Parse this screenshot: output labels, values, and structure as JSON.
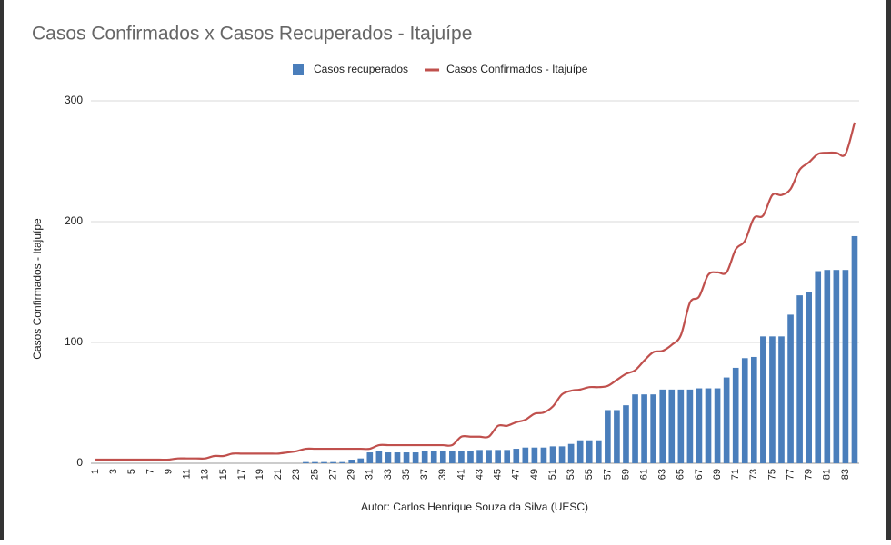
{
  "chart_data": {
    "type": "bar_line",
    "title": "Casos Confirmados x Casos Recuperados - Itajuípe",
    "y_label": "Casos Confirmados - Itajuípe",
    "x_label": "Autor: Carlos Henrique Souza da Silva (UESC)",
    "legend": "top",
    "grid": true,
    "ylim": [
      0,
      300
    ],
    "yticks": [
      0,
      100,
      200,
      300
    ],
    "categories": [
      1,
      null,
      3,
      null,
      5,
      null,
      7,
      null,
      9,
      null,
      11,
      null,
      13,
      null,
      15,
      null,
      17,
      null,
      19,
      null,
      21,
      null,
      23,
      null,
      25,
      null,
      27,
      null,
      29,
      null,
      31,
      null,
      33,
      null,
      35,
      null,
      37,
      null,
      39,
      null,
      41,
      null,
      43,
      null,
      45,
      null,
      47,
      null,
      49,
      null,
      51,
      null,
      53,
      null,
      55,
      null,
      57,
      null,
      59,
      null,
      61,
      null,
      63,
      null,
      65,
      null,
      67,
      null,
      69,
      null,
      71,
      null,
      73,
      null,
      75,
      null,
      77,
      null,
      79,
      null,
      81,
      null,
      83,
      null
    ],
    "series": [
      {
        "name": "Casos recuperados",
        "type": "bar",
        "color": "#4a7ebb",
        "values": [
          0,
          0,
          0,
          0,
          0,
          0,
          0,
          0,
          0,
          0,
          0,
          0,
          0,
          0,
          0,
          0,
          0,
          0,
          0,
          0,
          0,
          0,
          0,
          1,
          1,
          1,
          1,
          1,
          3,
          4,
          9,
          10,
          9,
          9,
          9,
          9,
          10,
          10,
          10,
          10,
          10,
          10,
          11,
          11,
          11,
          11,
          12,
          13,
          13,
          13,
          14,
          14,
          16,
          19,
          19,
          19,
          44,
          44,
          48,
          57,
          57,
          57,
          61,
          61,
          61,
          61,
          62,
          62,
          62,
          71,
          79,
          87,
          88,
          105,
          105,
          105,
          123,
          139,
          142,
          159,
          160,
          160,
          160,
          188
        ]
      },
      {
        "name": "Casos Confirmados - Itajuípe",
        "type": "line",
        "color": "#c0504d",
        "values": [
          3,
          3,
          3,
          3,
          3,
          3,
          3,
          3,
          3,
          4,
          4,
          4,
          4,
          6,
          6,
          8,
          8,
          8,
          8,
          8,
          8,
          9,
          10,
          12,
          12,
          12,
          12,
          12,
          12,
          12,
          12,
          15,
          15,
          15,
          15,
          15,
          15,
          15,
          15,
          15,
          22,
          22,
          22,
          22,
          31,
          31,
          34,
          36,
          41,
          42,
          47,
          57,
          60,
          61,
          63,
          63,
          64,
          69,
          74,
          77,
          85,
          92,
          93,
          98,
          106,
          133,
          138,
          156,
          158,
          158,
          177,
          184,
          203,
          205,
          222,
          222,
          227,
          243,
          249,
          256,
          257,
          257,
          256,
          282
        ]
      }
    ]
  }
}
